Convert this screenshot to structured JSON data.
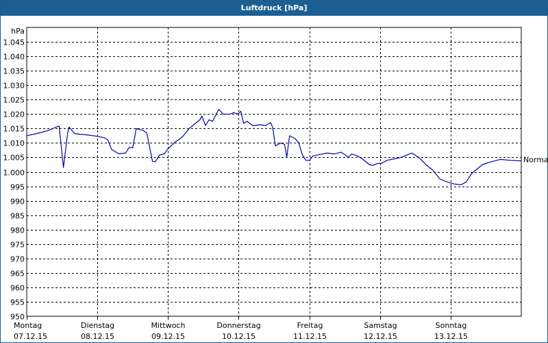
{
  "title": "Luftdruck [hPa]",
  "colors": {
    "titlebar": "#1b5f93",
    "line": "#0000aa",
    "grid": "#000000"
  },
  "chart_data": {
    "type": "line",
    "title": "Luftdruck [hPa]",
    "ylabel": "hPa",
    "ylim": [
      950,
      1050
    ],
    "yticks": [
      950,
      955,
      960,
      965,
      970,
      975,
      980,
      985,
      990,
      995,
      1000,
      1005,
      1010,
      1015,
      1020,
      1025,
      1030,
      1035,
      1040,
      1045
    ],
    "ytick_labels": [
      "950",
      "955",
      "960",
      "965",
      "970",
      "975",
      "980",
      "985",
      "990",
      "995",
      "1.000",
      "1.005",
      "1.010",
      "1.015",
      "1.020",
      "1.025",
      "1.030",
      "1.035",
      "1.040",
      "1.045"
    ],
    "xlim": [
      0,
      7
    ],
    "xticks": [
      {
        "pos": 0,
        "day": "Montag",
        "date": "07.12.15"
      },
      {
        "pos": 1,
        "day": "Dienstag",
        "date": "08.12.15"
      },
      {
        "pos": 2,
        "day": "Mittwoch",
        "date": "09.12.15"
      },
      {
        "pos": 3,
        "day": "Donnerstag",
        "date": "10.12.15"
      },
      {
        "pos": 4,
        "day": "Freitag",
        "date": "11.12.15"
      },
      {
        "pos": 5,
        "day": "Samstag",
        "date": "12.12.15"
      },
      {
        "pos": 6,
        "day": "Sonntag",
        "date": "13.12.15"
      }
    ],
    "grid": true,
    "reference_label": "Normal",
    "series": [
      {
        "values": [
          [
            0.0,
            1012.5
          ],
          [
            0.15,
            1013.3
          ],
          [
            0.3,
            1014.3
          ],
          [
            0.42,
            1015.5
          ],
          [
            0.46,
            1015.8
          ],
          [
            0.52,
            1001.5
          ],
          [
            0.58,
            1013.5
          ],
          [
            0.6,
            1015.5
          ],
          [
            0.68,
            1013.2
          ],
          [
            0.85,
            1012.8
          ],
          [
            1.0,
            1012.3
          ],
          [
            1.1,
            1011.8
          ],
          [
            1.15,
            1011.0
          ],
          [
            1.2,
            1007.8
          ],
          [
            1.3,
            1006.3
          ],
          [
            1.4,
            1006.5
          ],
          [
            1.45,
            1008.5
          ],
          [
            1.5,
            1008.3
          ],
          [
            1.55,
            1015.0
          ],
          [
            1.65,
            1014.3
          ],
          [
            1.7,
            1013.5
          ],
          [
            1.78,
            1003.6
          ],
          [
            1.82,
            1003.5
          ],
          [
            1.88,
            1005.8
          ],
          [
            1.95,
            1006.3
          ],
          [
            2.0,
            1008.0
          ],
          [
            2.1,
            1010.3
          ],
          [
            2.2,
            1012.0
          ],
          [
            2.3,
            1015.0
          ],
          [
            2.4,
            1017.0
          ],
          [
            2.45,
            1018.0
          ],
          [
            2.48,
            1019.3
          ],
          [
            2.53,
            1016.0
          ],
          [
            2.58,
            1018.0
          ],
          [
            2.63,
            1017.5
          ],
          [
            2.72,
            1021.7
          ],
          [
            2.78,
            1020.0
          ],
          [
            2.88,
            1020.0
          ],
          [
            2.93,
            1020.5
          ],
          [
            2.99,
            1020.0
          ],
          [
            3.03,
            1021.0
          ],
          [
            3.07,
            1016.8
          ],
          [
            3.12,
            1017.5
          ],
          [
            3.2,
            1016.0
          ],
          [
            3.3,
            1016.3
          ],
          [
            3.38,
            1016.0
          ],
          [
            3.45,
            1017.0
          ],
          [
            3.48,
            1015.5
          ],
          [
            3.52,
            1009.0
          ],
          [
            3.6,
            1010.0
          ],
          [
            3.65,
            1009.5
          ],
          [
            3.68,
            1005.0
          ],
          [
            3.72,
            1012.5
          ],
          [
            3.8,
            1011.5
          ],
          [
            3.85,
            1010.0
          ],
          [
            3.9,
            1006.0
          ],
          [
            3.95,
            1004.0
          ],
          [
            4.0,
            1004.0
          ],
          [
            4.05,
            1005.5
          ],
          [
            4.15,
            1006.0
          ],
          [
            4.25,
            1006.5
          ],
          [
            4.35,
            1006.2
          ],
          [
            4.45,
            1006.8
          ],
          [
            4.5,
            1006.0
          ],
          [
            4.55,
            1005.0
          ],
          [
            4.6,
            1006.2
          ],
          [
            4.68,
            1005.5
          ],
          [
            4.75,
            1004.5
          ],
          [
            4.85,
            1002.5
          ],
          [
            4.9,
            1002.2
          ],
          [
            4.95,
            1002.8
          ],
          [
            5.03,
            1003.0
          ],
          [
            5.1,
            1004.0
          ],
          [
            5.2,
            1004.5
          ],
          [
            5.3,
            1005.0
          ],
          [
            5.4,
            1006.0
          ],
          [
            5.45,
            1006.5
          ],
          [
            5.55,
            1005.0
          ],
          [
            5.65,
            1002.5
          ],
          [
            5.75,
            1000.5
          ],
          [
            5.85,
            997.5
          ],
          [
            5.95,
            996.5
          ],
          [
            6.05,
            995.8
          ],
          [
            6.15,
            995.5
          ],
          [
            6.22,
            996.5
          ],
          [
            6.3,
            999.5
          ],
          [
            6.45,
            1002.5
          ],
          [
            6.55,
            1003.3
          ],
          [
            6.7,
            1004.3
          ],
          [
            6.85,
            1004.0
          ],
          [
            7.0,
            1003.8
          ]
        ]
      }
    ]
  }
}
